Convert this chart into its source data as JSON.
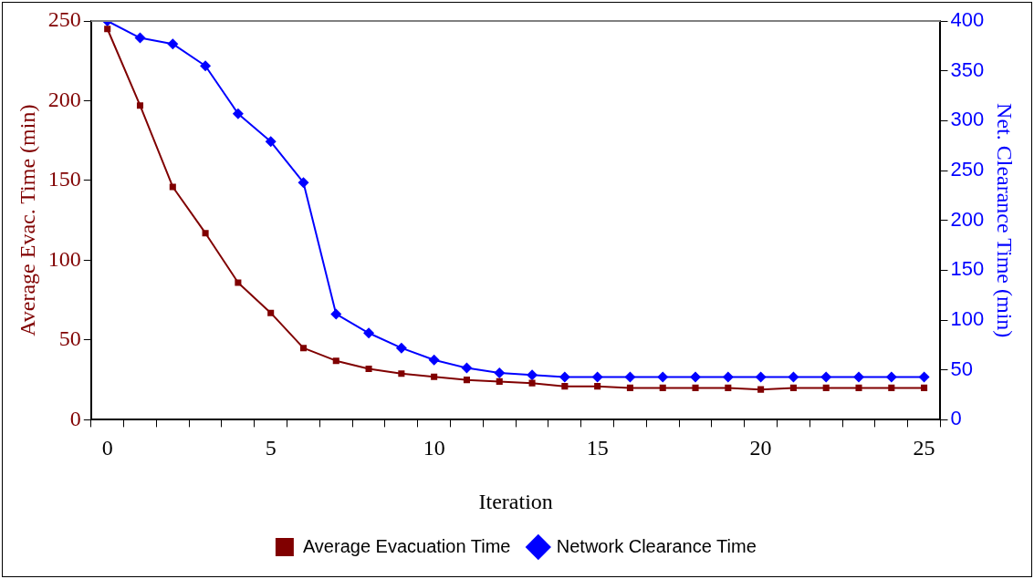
{
  "chart_data": {
    "type": "line",
    "xlabel": "Iteration",
    "ylabel": "Average Evac. Time (min)",
    "y2label": "Net. Clearance Time (min)",
    "categories": [
      "0",
      null,
      null,
      null,
      null,
      "5",
      null,
      null,
      null,
      null,
      "10",
      null,
      null,
      null,
      null,
      "15",
      null,
      null,
      null,
      null,
      "20",
      null,
      null,
      null,
      null,
      "25"
    ],
    "series": [
      {
        "name": "Average Evacuation Time",
        "color": "#800000",
        "marker": "square",
        "values": [
          245,
          197,
          146,
          117,
          86,
          67,
          45,
          37,
          32,
          29,
          27,
          25,
          24,
          23,
          21,
          21,
          20,
          20,
          20,
          20,
          19,
          20,
          20,
          20,
          20,
          20
        ]
      },
      {
        "name": "Network Clearance Time",
        "color": "#0000ff",
        "marker": "diamond",
        "axis": "y2",
        "values": [
          400,
          383,
          377,
          355,
          307,
          279,
          238,
          106,
          87,
          72,
          60,
          52,
          47,
          45,
          43,
          43,
          43,
          43,
          43,
          43,
          43,
          43,
          43,
          43,
          43,
          43
        ]
      }
    ],
    "ylim": [
      0,
      250
    ],
    "yticks": [
      0,
      50,
      100,
      150,
      200,
      250
    ],
    "y2lim": [
      0,
      400
    ],
    "y2ticks": [
      0,
      50,
      100,
      150,
      200,
      250,
      300,
      350,
      400
    ],
    "grid": false,
    "legend": "bottom",
    "line_style": "solid"
  }
}
